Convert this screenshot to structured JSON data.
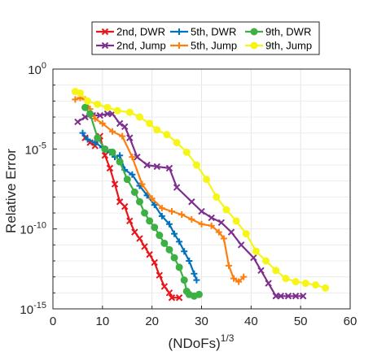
{
  "chart_data": {
    "type": "line",
    "xlabel": "(NDoFs)",
    "xlabel_sup": "1/3",
    "ylabel": "Relative Error",
    "xlim": [
      0,
      60
    ],
    "ylim_exponent": [
      -15,
      0
    ],
    "yscale": "log",
    "grid": true,
    "legend_placement": "top",
    "xticks": [
      "0",
      "10",
      "20",
      "30",
      "40",
      "50",
      "60"
    ],
    "yticks": [
      {
        "exp": 0,
        "base": "10",
        "sup": "0"
      },
      {
        "exp": -5,
        "base": "10",
        "sup": "-5"
      },
      {
        "exp": -10,
        "base": "10",
        "sup": "-10"
      },
      {
        "exp": -15,
        "base": "10",
        "sup": "-15"
      }
    ],
    "series": [
      {
        "name": "2nd, DWR",
        "color": "#e8151b",
        "marker": "x",
        "x": [
          6.5,
          7.5,
          8.5,
          9.5,
          10.5,
          11.5,
          12.5,
          13.5,
          14.5,
          15.5,
          16.5,
          17.5,
          18.5,
          19.5,
          20.5,
          21.5,
          22.5,
          23.5,
          24.0,
          25.5
        ],
        "log10y": [
          -4.3,
          -4.6,
          -4.8,
          -4.2,
          -5.4,
          -6.2,
          -7.2,
          -8.3,
          -8.6,
          -9.5,
          -10.2,
          -10.6,
          -11.1,
          -11.6,
          -12.1,
          -12.9,
          -13.6,
          -14.0,
          -14.3,
          -14.3
        ]
      },
      {
        "name": "2nd, Jump",
        "color": "#7e2f8e",
        "marker": "x",
        "x": [
          5.0,
          6.5,
          8.0,
          9.5,
          11.0,
          12.0,
          13.5,
          14.5,
          15.5,
          17.0,
          19.0,
          21.0,
          23.5,
          25.0,
          28.0,
          30.0,
          32.0,
          34.0,
          36.0,
          38.0,
          40.5,
          42.0,
          43.5,
          45.0,
          46.0,
          47.5,
          49.0,
          50.5
        ],
        "log10y": [
          -3.3,
          -3.0,
          -2.9,
          -2.9,
          -2.8,
          -2.8,
          -3.4,
          -3.6,
          -4.3,
          -5.5,
          -6.0,
          -6.1,
          -6.2,
          -7.4,
          -8.3,
          -8.9,
          -9.3,
          -9.6,
          -10.2,
          -11.0,
          -11.8,
          -12.6,
          -13.4,
          -14.2,
          -14.2,
          -14.2,
          -14.2,
          -14.2
        ]
      },
      {
        "name": "5th, DWR",
        "color": "#0072bd",
        "marker": "+",
        "x": [
          6.0,
          7.0,
          8.5,
          10.0,
          11.5,
          12.5,
          13.5,
          14.5,
          16.0,
          17.5,
          19.0,
          20.5,
          22.0,
          23.5,
          24.5,
          25.5,
          26.5,
          27.5,
          28.5,
          29.0
        ],
        "log10y": [
          -4.0,
          -4.4,
          -4.6,
          -4.9,
          -5.2,
          -5.5,
          -5.4,
          -6.3,
          -6.6,
          -7.3,
          -7.9,
          -8.5,
          -9.2,
          -9.7,
          -10.3,
          -10.8,
          -11.4,
          -12.0,
          -12.8,
          -13.2
        ]
      },
      {
        "name": "5th, Jump",
        "color": "#ff7f0e",
        "marker": "+",
        "x": [
          4.5,
          5.5,
          6.5,
          7.5,
          8.5,
          10.0,
          12.0,
          14.0,
          16.0,
          18.0,
          20.0,
          22.0,
          24.0,
          26.0,
          28.0,
          30.0,
          32.0,
          33.5,
          34.5,
          35.5,
          36.5,
          37.5,
          38.5
        ],
        "log10y": [
          -1.9,
          -1.8,
          -1.9,
          -2.5,
          -3.1,
          -3.4,
          -3.9,
          -4.2,
          -5.5,
          -7.2,
          -8.1,
          -8.7,
          -8.9,
          -9.1,
          -9.4,
          -9.7,
          -9.8,
          -10.2,
          -10.6,
          -12.3,
          -13.1,
          -13.3,
          -13.0
        ]
      },
      {
        "name": "9th, DWR",
        "color": "#3cb043",
        "marker": "o",
        "x": [
          6.5,
          7.5,
          9.0,
          10.5,
          12.0,
          13.5,
          15.0,
          16.5,
          17.5,
          18.5,
          19.5,
          20.5,
          21.5,
          22.5,
          23.5,
          24.5,
          25.5,
          26.5,
          27.0,
          27.5,
          28.5,
          29.5
        ],
        "log10y": [
          -2.4,
          -2.8,
          -4.3,
          -5.0,
          -5.2,
          -5.8,
          -6.9,
          -7.7,
          -8.3,
          -9.0,
          -9.5,
          -9.9,
          -10.4,
          -10.9,
          -11.3,
          -11.8,
          -12.4,
          -13.2,
          -13.9,
          -14.1,
          -14.2,
          -14.1
        ]
      },
      {
        "name": "9th, Jump",
        "color": "#f5f517",
        "marker": "o",
        "x": [
          4.5,
          5.5,
          7.0,
          9.0,
          11.0,
          13.0,
          15.5,
          17.5,
          19.5,
          21.0,
          23.0,
          25.0,
          27.0,
          29.0,
          31.0,
          33.0,
          35.0,
          37.0,
          39.0,
          41.0,
          43.0,
          45.0,
          47.0,
          49.0,
          51.0,
          53.0,
          55.0
        ],
        "log10y": [
          -1.4,
          -1.5,
          -2.0,
          -2.2,
          -2.4,
          -2.6,
          -2.7,
          -3.0,
          -3.4,
          -3.8,
          -4.1,
          -4.6,
          -5.2,
          -6.0,
          -6.9,
          -8.0,
          -8.8,
          -9.5,
          -10.3,
          -11.4,
          -12.0,
          -12.6,
          -13.1,
          -13.3,
          -13.4,
          -13.5,
          -13.7
        ]
      }
    ]
  }
}
